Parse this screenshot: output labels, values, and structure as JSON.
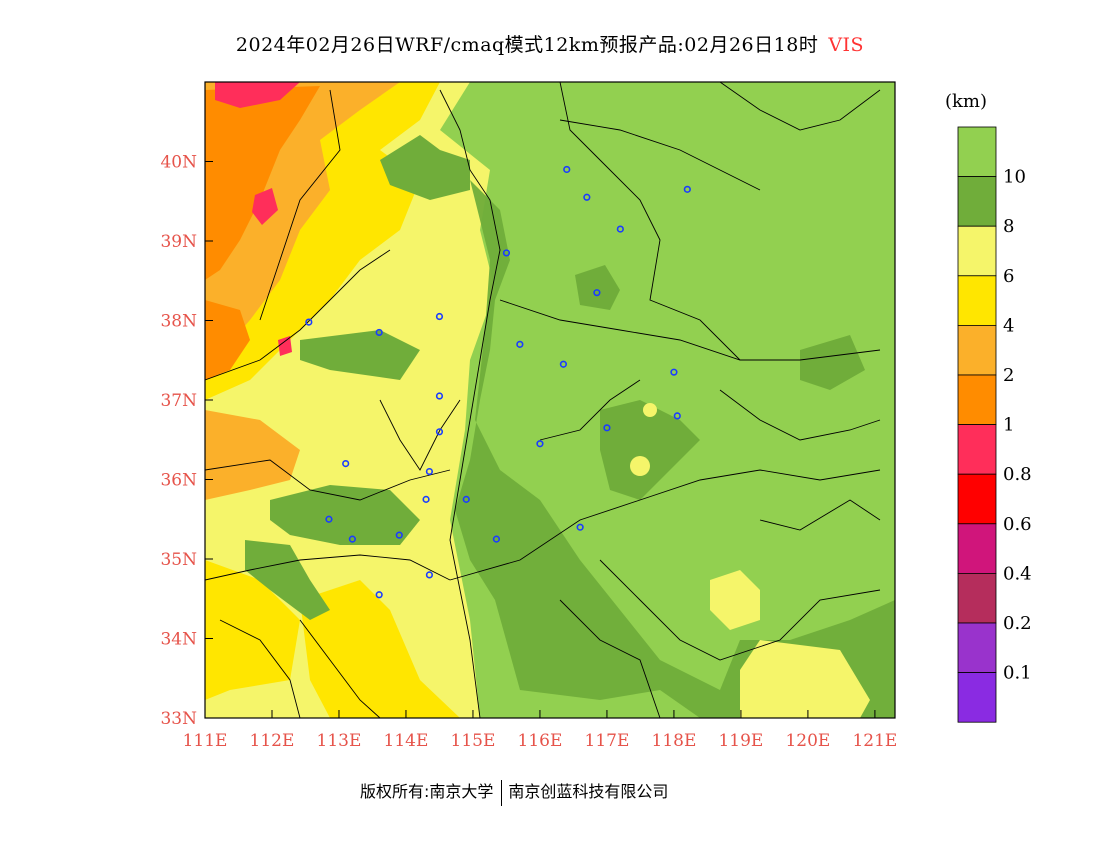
{
  "title": {
    "main": "2024年02月26日WRF/cmaq模式12km预报产品:02月26日18时",
    "variable": "VIS"
  },
  "footer": {
    "left": "版权所有:南京大学",
    "right": "南京创蓝科技有限公司"
  },
  "map": {
    "lon_ticks": [
      "111E",
      "112E",
      "113E",
      "114E",
      "115E",
      "116E",
      "117E",
      "118E",
      "119E",
      "120E",
      "121E"
    ],
    "lat_ticks": [
      "33N",
      "34N",
      "35N",
      "36N",
      "37N",
      "38N",
      "39N",
      "40N"
    ],
    "lon_range": [
      111,
      121.3
    ],
    "lat_range": [
      33,
      41
    ]
  },
  "legend": {
    "unit": "(km)",
    "colors": [
      "#92d050",
      "#70ad3a",
      "#f5f56a",
      "#ffe600",
      "#fbb02a",
      "#ff8c00",
      "#ff2e5a",
      "#ff0000",
      "#d0157b",
      "#b52d5c",
      "#9933cc",
      "#8a2be2"
    ],
    "labels": [
      "10",
      "8",
      "6",
      "4",
      "2",
      "1",
      "0.8",
      "0.6",
      "0.4",
      "0.2",
      "0.1"
    ]
  },
  "stations": [
    [
      116.4,
      39.9
    ],
    [
      116.7,
      39.55
    ],
    [
      117.2,
      39.15
    ],
    [
      118.2,
      39.65
    ],
    [
      115.5,
      38.85
    ],
    [
      116.85,
      38.35
    ],
    [
      112.55,
      37.98
    ],
    [
      113.6,
      37.85
    ],
    [
      114.5,
      38.05
    ],
    [
      115.7,
      37.7
    ],
    [
      116.35,
      37.45
    ],
    [
      118.0,
      37.35
    ],
    [
      114.5,
      37.05
    ],
    [
      114.5,
      36.6
    ],
    [
      116.0,
      36.45
    ],
    [
      117.0,
      36.65
    ],
    [
      118.05,
      36.8
    ],
    [
      113.1,
      36.2
    ],
    [
      114.35,
      36.1
    ],
    [
      114.3,
      35.75
    ],
    [
      114.9,
      35.75
    ],
    [
      112.85,
      35.5
    ],
    [
      113.2,
      35.25
    ],
    [
      113.9,
      35.3
    ],
    [
      115.35,
      35.25
    ],
    [
      116.6,
      35.4
    ],
    [
      114.35,
      34.8
    ],
    [
      113.6,
      34.55
    ]
  ]
}
